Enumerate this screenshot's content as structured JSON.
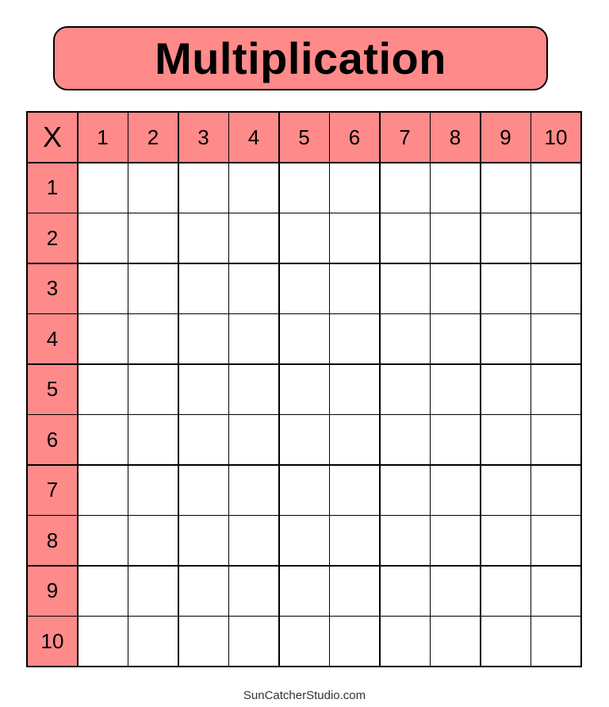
{
  "title": "Multiplication",
  "corner_label": "X",
  "column_headers": [
    "1",
    "2",
    "3",
    "4",
    "5",
    "6",
    "7",
    "8",
    "9",
    "10"
  ],
  "row_headers": [
    "1",
    "2",
    "3",
    "4",
    "5",
    "6",
    "7",
    "8",
    "9",
    "10"
  ],
  "footer": "SunCatcherStudio.com",
  "colors": {
    "header_fill": "#ff8a8a",
    "border": "#000000"
  }
}
